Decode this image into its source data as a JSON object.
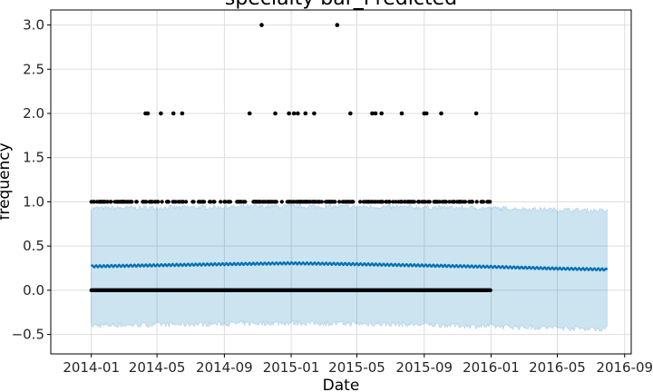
{
  "chart_data": {
    "type": "scatter",
    "title": "specialty bar_Predicted",
    "xlabel": "Date",
    "ylabel": "frequency",
    "xlim": [
      "2013-10-19",
      "2016-09-13"
    ],
    "ylim": [
      -0.72,
      3.17
    ],
    "x_ticks": [
      "2014-01",
      "2014-05",
      "2014-09",
      "2015-01",
      "2015-05",
      "2015-09",
      "2016-01",
      "2016-05",
      "2016-09"
    ],
    "y_ticks": [
      "−0.5",
      "0.0",
      "0.5",
      "1.0",
      "1.5",
      "2.0",
      "2.5",
      "3.0"
    ],
    "grid": true,
    "legend": "none",
    "history_range": [
      "2014-01-01",
      "2015-12-31"
    ],
    "forecast_range": [
      "2014-01-01",
      "2016-07-31"
    ],
    "series": [
      {
        "role": "observed",
        "color": "#000000",
        "baseline_values": [
          0,
          1
        ],
        "points": [
          {
            "x": "2014-04-10",
            "y": 2
          },
          {
            "x": "2014-04-14",
            "y": 2
          },
          {
            "x": "2014-05-08",
            "y": 2
          },
          {
            "x": "2014-05-31",
            "y": 2
          },
          {
            "x": "2014-06-16",
            "y": 2
          },
          {
            "x": "2014-10-17",
            "y": 2
          },
          {
            "x": "2014-11-08",
            "y": 3
          },
          {
            "x": "2014-12-03",
            "y": 2
          },
          {
            "x": "2014-12-28",
            "y": 2
          },
          {
            "x": "2015-01-06",
            "y": 2
          },
          {
            "x": "2015-01-13",
            "y": 2
          },
          {
            "x": "2015-01-27",
            "y": 2
          },
          {
            "x": "2015-02-12",
            "y": 2
          },
          {
            "x": "2015-03-26",
            "y": 3
          },
          {
            "x": "2015-04-19",
            "y": 2
          },
          {
            "x": "2015-05-29",
            "y": 2
          },
          {
            "x": "2015-06-04",
            "y": 2
          },
          {
            "x": "2015-06-15",
            "y": 2
          },
          {
            "x": "2015-07-22",
            "y": 2
          },
          {
            "x": "2015-09-01",
            "y": 2
          },
          {
            "x": "2015-09-05",
            "y": 2
          },
          {
            "x": "2015-10-02",
            "y": 2
          },
          {
            "x": "2015-12-05",
            "y": 2
          }
        ]
      },
      {
        "role": "forecast",
        "color": "#0072B2",
        "trend": [
          {
            "x": "2014-01-01",
            "y": 0.27
          },
          {
            "x": "2014-09-01",
            "y": 0.295
          },
          {
            "x": "2015-01-01",
            "y": 0.305
          },
          {
            "x": "2015-05-01",
            "y": 0.295
          },
          {
            "x": "2015-09-01",
            "y": 0.28
          },
          {
            "x": "2016-01-01",
            "y": 0.265
          },
          {
            "x": "2016-05-01",
            "y": 0.245
          },
          {
            "x": "2016-07-31",
            "y": 0.235
          }
        ],
        "weekly_amplitude": 0.012
      },
      {
        "role": "uncertainty",
        "color": "#0072B2",
        "upper": [
          {
            "x": "2014-01-01",
            "y": 0.93
          },
          {
            "x": "2015-01-01",
            "y": 0.95
          },
          {
            "x": "2015-09-01",
            "y": 0.94
          },
          {
            "x": "2016-01-01",
            "y": 0.93
          },
          {
            "x": "2016-07-31",
            "y": 0.9
          }
        ],
        "lower": [
          {
            "x": "2014-01-01",
            "y": -0.4
          },
          {
            "x": "2015-01-01",
            "y": -0.37
          },
          {
            "x": "2015-09-01",
            "y": -0.39
          },
          {
            "x": "2016-01-01",
            "y": -0.41
          },
          {
            "x": "2016-07-31",
            "y": -0.44
          }
        ]
      }
    ]
  }
}
